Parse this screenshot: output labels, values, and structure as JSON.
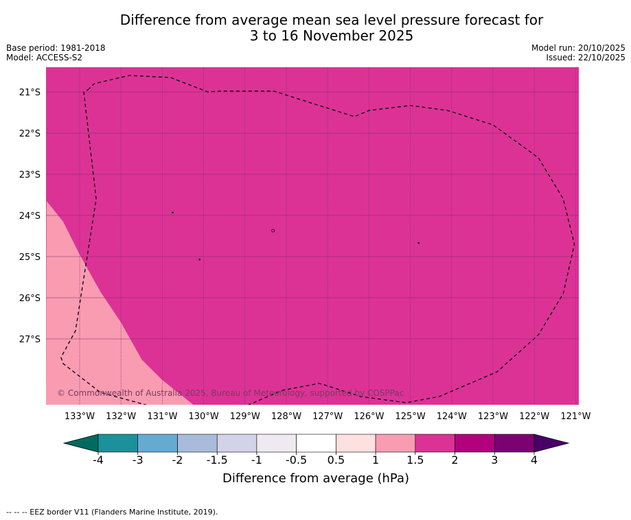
{
  "title": {
    "line1": "Difference from average mean sea level pressure forecast for",
    "line2": "3 to 16 November 2025"
  },
  "meta": {
    "base_period": "Base period: 1981-2018",
    "model": "Model: ACCESS-S2",
    "model_run": "Model run: 20/10/2025",
    "issued": "Issued: 22/10/2025"
  },
  "copyright": "© Commonwealth of Australia 2025, Bureau of Meteorology, supported by COSPPac",
  "footer": "--  --  -- EEZ border V11 (Flanders Marine Institute, 2019).",
  "colors": {
    "field_main": "#dc3296",
    "field_low": "#f99cb2",
    "grid": "#7a2b60",
    "coast": "#000000"
  },
  "chart_data": {
    "type": "heatmap",
    "title": "Difference from average mean sea level pressure forecast for 3 to 16 November 2025",
    "variable": "MSLP anomaly",
    "units": "hPa",
    "lon_range": [
      -133.8,
      -120.9
    ],
    "lat_range": [
      -28.6,
      -20.4
    ],
    "x_ticks": [
      -133,
      -132,
      -131,
      -130,
      -129,
      -128,
      -127,
      -126,
      -125,
      -124,
      -123,
      -122,
      -121
    ],
    "x_tick_labels": [
      "133°W",
      "132°W",
      "131°W",
      "130°W",
      "129°W",
      "128°W",
      "127°W",
      "126°W",
      "125°W",
      "124°W",
      "123°W",
      "122°W",
      "121°W"
    ],
    "y_ticks": [
      -21,
      -22,
      -23,
      -24,
      -25,
      -26,
      -27
    ],
    "y_tick_labels": [
      "21°S",
      "22°S",
      "23°S",
      "24°S",
      "25°S",
      "26°S",
      "27°S"
    ],
    "regions": [
      {
        "category": "1.5 to 2",
        "color": "#dc3296",
        "extent": "most of map"
      },
      {
        "category": "1 to 1.5",
        "color": "#f99cb2",
        "extent": "south-west corner",
        "boundary_lonlat": [
          [
            -133.8,
            -23.65
          ],
          [
            -133.4,
            -24.15
          ],
          [
            -133.0,
            -24.95
          ],
          [
            -132.5,
            -25.85
          ],
          [
            -132.0,
            -26.6
          ],
          [
            -131.5,
            -27.5
          ],
          [
            -131.0,
            -28.0
          ],
          [
            -130.25,
            -28.6
          ]
        ]
      }
    ],
    "eez_border_lonlat": [
      [
        -132.8,
        -20.95
      ],
      [
        -132.65,
        -20.8
      ],
      [
        -131.8,
        -20.6
      ],
      [
        -130.8,
        -20.65
      ],
      [
        -129.9,
        -21.0
      ],
      [
        -129.6,
        -20.98
      ],
      [
        -128.3,
        -20.98
      ],
      [
        -127.3,
        -21.3
      ],
      [
        -126.35,
        -21.6
      ],
      [
        -126.0,
        -21.45
      ],
      [
        -125.0,
        -21.33
      ],
      [
        -124.1,
        -21.45
      ],
      [
        -123.0,
        -21.8
      ],
      [
        -121.9,
        -22.6
      ],
      [
        -121.3,
        -23.6
      ],
      [
        -121.03,
        -24.7
      ],
      [
        -121.3,
        -25.9
      ],
      [
        -121.9,
        -26.9
      ],
      [
        -122.9,
        -27.8
      ],
      [
        -124.3,
        -28.4
      ],
      [
        -125.1,
        -28.55
      ],
      [
        -126.2,
        -28.4
      ],
      [
        -127.2,
        -28.08
      ],
      [
        -128.1,
        -28.25
      ],
      [
        -129.0,
        -28.64
      ],
      [
        -130.2,
        -28.78
      ],
      [
        -131.3,
        -28.63
      ],
      [
        -132.5,
        -28.3
      ],
      [
        -133.4,
        -27.6
      ],
      [
        -133.45,
        -27.45
      ],
      [
        -133.1,
        -26.8
      ],
      [
        -132.6,
        -23.6
      ],
      [
        -132.9,
        -21.0
      ],
      [
        -132.8,
        -20.95
      ]
    ],
    "islands_lonlat": [
      [
        -130.75,
        -23.93
      ],
      [
        -128.32,
        -24.37
      ],
      [
        -130.1,
        -25.07
      ],
      [
        -124.8,
        -24.67
      ]
    ],
    "colorbar": {
      "label": "Difference from average (hPa)",
      "boundaries": [
        -4,
        -3,
        -2,
        -1.5,
        -1,
        -0.5,
        0.5,
        1,
        1.5,
        2,
        3,
        4
      ],
      "tick_labels": [
        "-4",
        "-3",
        "-2",
        "-1.5",
        "-1",
        "-0.5",
        "0.5",
        "1",
        "1.5",
        "2",
        "3",
        "4"
      ],
      "colors": [
        "#1b9199",
        "#66aad2",
        "#a9bbdb",
        "#d2d2e8",
        "#efeaf2",
        "#ffffff",
        "#fde0e0",
        "#f99cb2",
        "#dc3296",
        "#b3017e",
        "#7c0273"
      ],
      "extend_low_color": "#006a5f",
      "extend_high_color": "#4a0067"
    }
  }
}
